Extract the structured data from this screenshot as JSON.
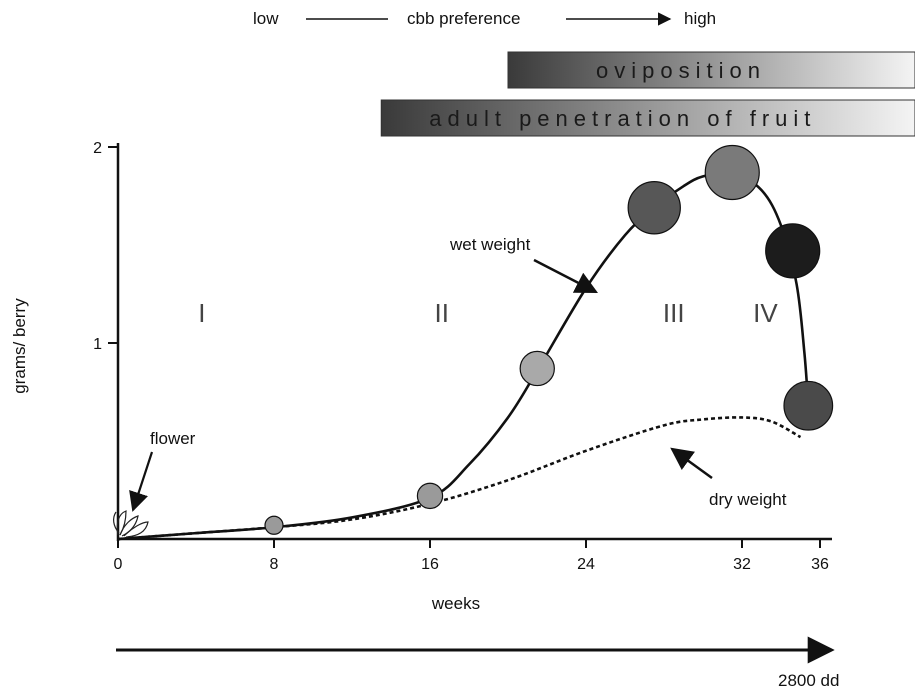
{
  "preference": {
    "low": "low",
    "label": "cbb preference",
    "high": "high"
  },
  "bands": [
    {
      "label": "oviposition",
      "start_week": 20,
      "end_week": 41
    },
    {
      "label": "adult penetration of fruit",
      "start_week": 13.5,
      "end_week": 41
    }
  ],
  "chart_data": {
    "type": "line",
    "title": "",
    "xlabel": "weeks",
    "ylabel": "grams/ berry",
    "xlim": [
      0,
      36
    ],
    "ylim": [
      0,
      2
    ],
    "xticks": [
      0,
      8,
      16,
      24,
      32,
      36
    ],
    "yticks": [
      1,
      2
    ],
    "series": [
      {
        "name": "wet weight",
        "style": "solid",
        "x": [
          0,
          4,
          8,
          12,
          16,
          18,
          20,
          21.5,
          24,
          26,
          27.5,
          29,
          30,
          31.5,
          33,
          34,
          34.8,
          35.2,
          35.4
        ],
        "y": [
          0,
          0.03,
          0.06,
          0.11,
          0.21,
          0.38,
          0.62,
          0.86,
          1.28,
          1.55,
          1.69,
          1.8,
          1.85,
          1.87,
          1.78,
          1.6,
          1.3,
          0.95,
          0.68
        ]
      },
      {
        "name": "dry weight",
        "style": "dashed",
        "x": [
          0,
          4,
          8,
          12,
          16,
          20,
          24,
          28,
          30,
          32,
          33.5,
          35
        ],
        "y": [
          0,
          0.03,
          0.06,
          0.1,
          0.18,
          0.3,
          0.45,
          0.58,
          0.61,
          0.62,
          0.6,
          0.52
        ]
      }
    ],
    "points": [
      {
        "x": 8,
        "y": 0.07,
        "size": 1,
        "shade": "#9a9a9a"
      },
      {
        "x": 16,
        "y": 0.22,
        "size": 1.4,
        "shade": "#9a9a9a"
      },
      {
        "x": 21.5,
        "y": 0.87,
        "size": 1.9,
        "shade": "#a9a9a9"
      },
      {
        "x": 27.5,
        "y": 1.69,
        "size": 2.9,
        "shade": "#575757"
      },
      {
        "x": 31.5,
        "y": 1.87,
        "size": 3.0,
        "shade": "#7a7a7a"
      },
      {
        "x": 34.6,
        "y": 1.47,
        "size": 3.0,
        "shade": "#1c1c1c"
      },
      {
        "x": 35.4,
        "y": 0.68,
        "size": 2.7,
        "shade": "#4a4a4a"
      }
    ],
    "stages": [
      {
        "label": "I",
        "week": 4.3
      },
      {
        "label": "II",
        "week": 16.6
      },
      {
        "label": "III",
        "week": 28.5
      },
      {
        "label": "IV",
        "week": 33.2
      }
    ],
    "annotations": {
      "flower": "flower",
      "wet": "wet weight",
      "dry": "dry weight"
    },
    "timeline_label": "2800 dd"
  }
}
